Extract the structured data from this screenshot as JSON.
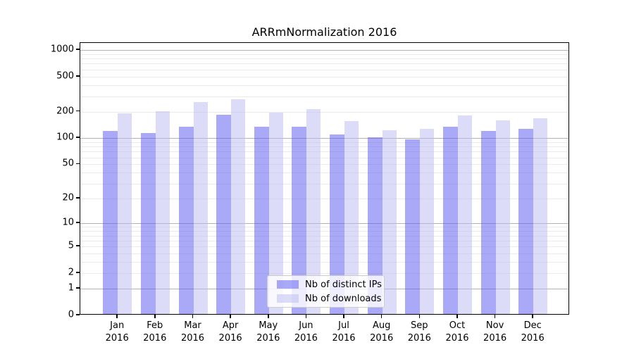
{
  "chart_data": {
    "type": "bar",
    "title": "ARRmNormalization 2016",
    "categories": [
      "Jan",
      "Feb",
      "Mar",
      "Apr",
      "May",
      "Jun",
      "Jul",
      "Aug",
      "Sep",
      "Oct",
      "Nov",
      "Dec"
    ],
    "category_year": "2016",
    "series": [
      {
        "name": "Nb of distinct IPs",
        "color": "rgba(83,83,239,0.5)",
        "values": [
          120,
          114,
          136,
          184,
          135,
          136,
          111,
          102,
          96,
          136,
          120,
          127
        ]
      },
      {
        "name": "Nb of downloads",
        "color": "rgba(185,185,243,0.5)",
        "values": [
          190,
          203,
          258,
          278,
          195,
          214,
          155,
          124,
          127,
          180,
          160,
          168
        ]
      }
    ],
    "xlabel": "",
    "ylabel": "",
    "y_scale": "log10(value+1)",
    "y_ticks": [
      0,
      1,
      2,
      5,
      10,
      20,
      50,
      100,
      200,
      500,
      1000
    ],
    "ylim": [
      0,
      1300
    ],
    "grid": {
      "major_color": "#b3b3b3",
      "minor_color": "#ebebeb",
      "minor": "mantissas 2-9 of each decade"
    },
    "legend": {
      "position": "lower center",
      "background": "rgba(255,255,255,0.8)",
      "border_color": "#cccccc"
    }
  }
}
